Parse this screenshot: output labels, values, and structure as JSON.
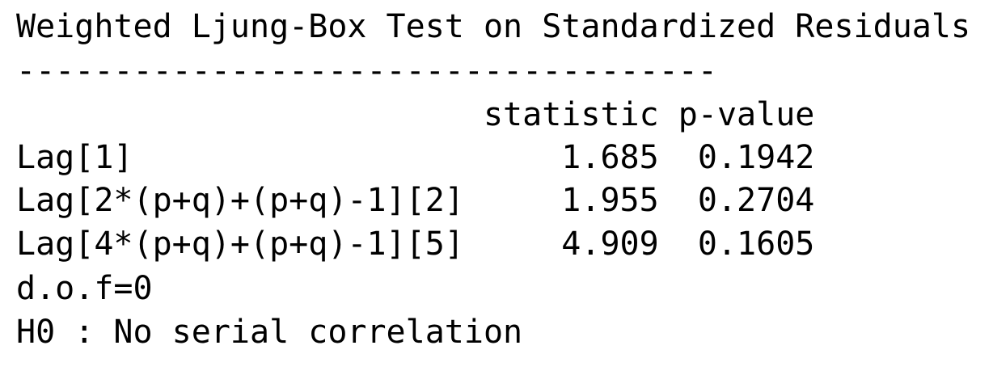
{
  "header": {
    "title": "Weighted Ljung-Box Test on Standardized Residuals",
    "separator": "------------------------------------"
  },
  "table": {
    "columns": [
      "statistic",
      "p-value"
    ],
    "rows": [
      [
        "Lag[1]",
        "1.685",
        "0.1942"
      ],
      [
        "Lag[2*(p+q)+(p+q)-1][2]",
        "1.955",
        "0.2704"
      ],
      [
        "Lag[4*(p+q)+(p+q)-1][5]",
        "4.909",
        "0.1605"
      ]
    ]
  },
  "footer": [
    "d.o.f=0",
    "H0 : No serial correlation"
  ]
}
